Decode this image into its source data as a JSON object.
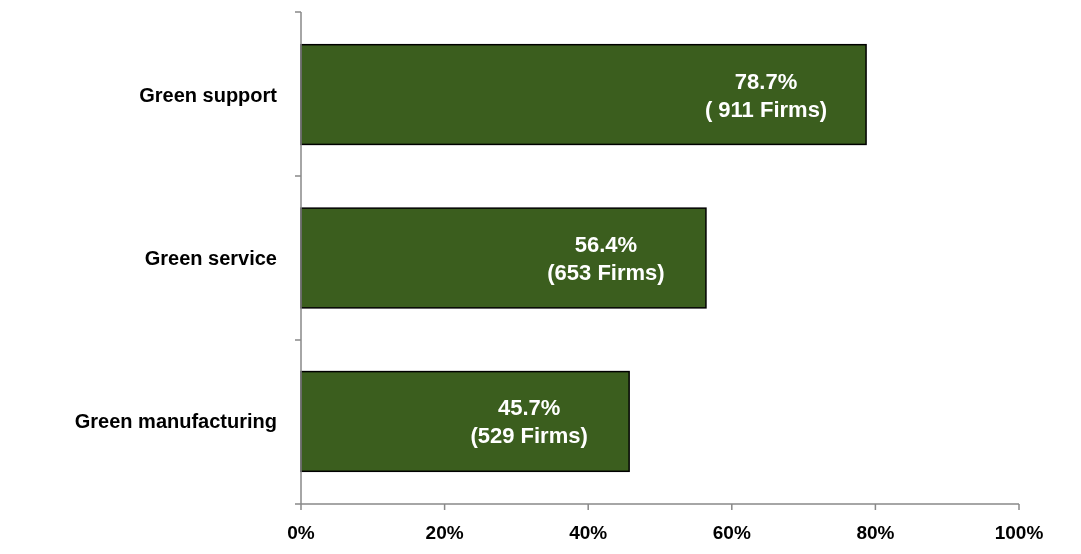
{
  "chart_data": {
    "type": "bar",
    "orientation": "horizontal",
    "categories": [
      "Green support",
      "Green service",
      "Green manufacturing"
    ],
    "values": [
      78.7,
      56.4,
      45.7
    ],
    "value_labels": [
      "78.7%\n( 911 Firms)",
      "56.4%\n(653 Firms)",
      "45.7%\n(529 Firms)"
    ],
    "color": "#3b5e1e",
    "xlim": [
      0,
      100
    ],
    "xticks": [
      {
        "value": 0,
        "label": "0%"
      },
      {
        "value": 20,
        "label": "20%"
      },
      {
        "value": 40,
        "label": "40%"
      },
      {
        "value": 60,
        "label": "60%"
      },
      {
        "value": 80,
        "label": "80%"
      },
      {
        "value": 100,
        "label": "100%"
      }
    ],
    "grid": false
  }
}
